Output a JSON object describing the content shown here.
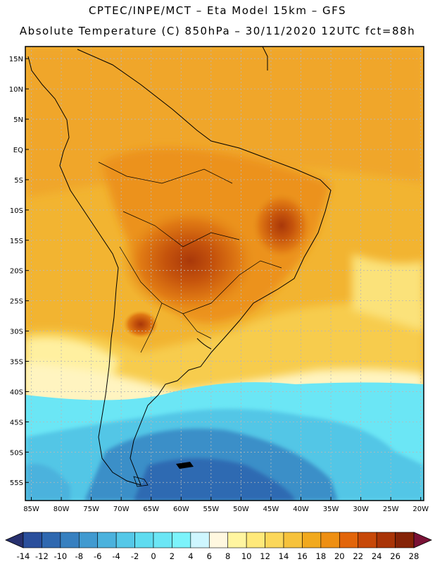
{
  "header": {
    "line1": "CPTEC/INPE/MCT –  Eta Model 15km – GFS",
    "line2": "Absolute Temperature (C) 850hPa – 30/11/2020 12UTC fct=88h"
  },
  "map": {
    "lat_labels": [
      "15N",
      "10N",
      "5N",
      "EQ",
      "5S",
      "10S",
      "15S",
      "20S",
      "25S",
      "30S",
      "35S",
      "40S",
      "45S",
      "50S",
      "55S"
    ],
    "lon_labels": [
      "85W",
      "80W",
      "75W",
      "70W",
      "65W",
      "60W",
      "55W",
      "50W",
      "45W",
      "40W",
      "35W",
      "30W",
      "25W",
      "20W"
    ],
    "lat_values": [
      15,
      10,
      5,
      0,
      -5,
      -10,
      -15,
      -20,
      -25,
      -30,
      -35,
      -40,
      -45,
      -50,
      -55
    ],
    "lon_values": [
      -85,
      -80,
      -75,
      -70,
      -65,
      -60,
      -55,
      -50,
      -45,
      -40,
      -35,
      -30,
      -25,
      -20
    ],
    "extent": {
      "west": -86,
      "east": -19.5,
      "north": 17,
      "south": -58
    },
    "gridlines": true
  },
  "colorbar": {
    "labels": [
      "-14",
      "-12",
      "-10",
      "-8",
      "-6",
      "-4",
      "-2",
      "0",
      "2",
      "4",
      "6",
      "8",
      "10",
      "12",
      "14",
      "16",
      "18",
      "20",
      "22",
      "24",
      "26",
      "28"
    ],
    "colors": [
      "#2a4f9c",
      "#2f68b0",
      "#3780c0",
      "#419ad0",
      "#4bb2dd",
      "#55c8e8",
      "#5fdcf0",
      "#6be6f5",
      "#7cf3fb",
      "#cef6ff",
      "#fff8e0",
      "#fff5a0",
      "#ffe97a",
      "#fbd75a",
      "#f6c23c",
      "#f1a91e",
      "#ee8f13",
      "#e2650a",
      "#c74808",
      "#a93407",
      "#852307"
    ],
    "under_color": "#27306e",
    "over_color": "#7a1236"
  }
}
